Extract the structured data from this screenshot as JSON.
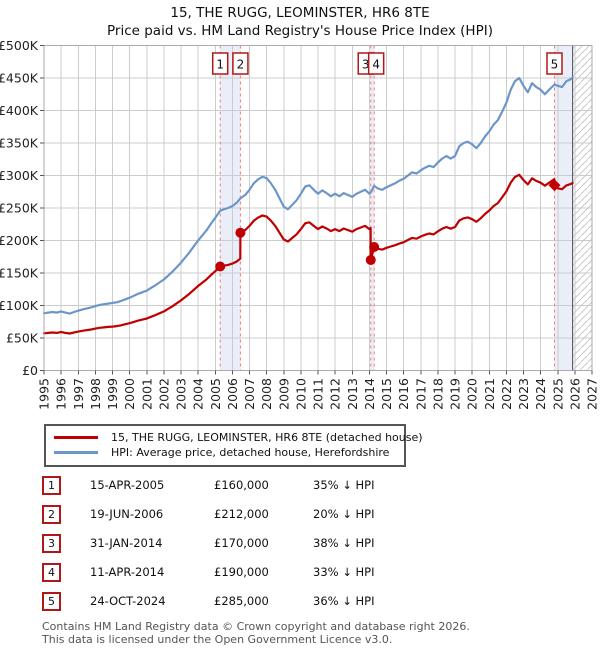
{
  "title": "15, THE RUGG, LEOMINSTER, HR6 8TE",
  "subtitle": "Price paid vs. HM Land Registry's House Price Index (HPI)",
  "legend": [
    {
      "label": "15, THE RUGG, LEOMINSTER, HR6 8TE (detached house)",
      "color": "#c00000"
    },
    {
      "label": "HPI: Average price, detached house, Herefordshire",
      "color": "#6d96c8"
    }
  ],
  "transactions": [
    {
      "num": "1",
      "date": "15-APR-2005",
      "price": "£160,000",
      "vs_hpi": "35% ↓ HPI"
    },
    {
      "num": "2",
      "date": "19-JUN-2006",
      "price": "£212,000",
      "vs_hpi": "20% ↓ HPI"
    },
    {
      "num": "3",
      "date": "31-JAN-2014",
      "price": "£170,000",
      "vs_hpi": "38% ↓ HPI"
    },
    {
      "num": "4",
      "date": "11-APR-2014",
      "price": "£190,000",
      "vs_hpi": "33% ↓ HPI"
    },
    {
      "num": "5",
      "date": "24-OCT-2024",
      "price": "£285,000",
      "vs_hpi": "36% ↓ HPI"
    }
  ],
  "footer": {
    "line1": "Contains HM Land Registry data © Crown copyright and database right 2026.",
    "line2": "This data is licensed under the Open Government Licence v3.0."
  },
  "chart_data": {
    "type": "line",
    "title": "Price paid vs. HM Land Registry's House Price Index (HPI)",
    "x_axis": {
      "min": 1995,
      "max": 2027,
      "tick_labels": [
        "1995",
        "1996",
        "1997",
        "1998",
        "1999",
        "2000",
        "2001",
        "2002",
        "2003",
        "2004",
        "2005",
        "2006",
        "2007",
        "2008",
        "2009",
        "2010",
        "2011",
        "2012",
        "2013",
        "2014",
        "2015",
        "2016",
        "2017",
        "2018",
        "2019",
        "2020",
        "2021",
        "2022",
        "2023",
        "2024",
        "2025",
        "2026",
        "2027"
      ]
    },
    "y_axis": {
      "min": 0,
      "max": 500,
      "units": "GBP thousands",
      "step": 50,
      "tick_labels": [
        "£0",
        "£50K",
        "£100K",
        "£150K",
        "£200K",
        "£250K",
        "£300K",
        "£350K",
        "£400K",
        "£450K",
        "£500K"
      ]
    },
    "grid": true,
    "legend_position": "below",
    "colors": {
      "price_paid": "#c00000",
      "hpi": "#6d96c8",
      "event_line": "#f37c7c",
      "band": "#e9eef9",
      "hatch": "#c9c9c9",
      "grid": "#cccccc",
      "frame": "#aaaaaa",
      "now_line": "#444455",
      "event_box_border": "#b01818"
    },
    "series": [
      {
        "name": "price_paid",
        "label": "15, THE RUGG, LEOMINSTER, HR6 8TE (detached house)",
        "points_year_gbpk": [
          [
            1995.0,
            57.2
          ],
          [
            1995.25,
            57.9
          ],
          [
            1995.5,
            58.5
          ],
          [
            1995.75,
            57.9
          ],
          [
            1996.0,
            59.2
          ],
          [
            1996.25,
            57.9
          ],
          [
            1996.5,
            56.9
          ],
          [
            1996.75,
            58.5
          ],
          [
            1997.0,
            59.8
          ],
          [
            1997.25,
            61.1
          ],
          [
            1997.5,
            62.1
          ],
          [
            1997.75,
            63.1
          ],
          [
            1998.0,
            64.4
          ],
          [
            1998.25,
            65.7
          ],
          [
            1998.5,
            66.3
          ],
          [
            1998.75,
            67
          ],
          [
            1999.0,
            67.6
          ],
          [
            1999.25,
            68.3
          ],
          [
            1999.5,
            69.6
          ],
          [
            1999.75,
            71.2
          ],
          [
            2000.0,
            72.8
          ],
          [
            2000.25,
            74.8
          ],
          [
            2000.5,
            76.7
          ],
          [
            2000.75,
            78.3
          ],
          [
            2001.0,
            80
          ],
          [
            2001.25,
            82.6
          ],
          [
            2001.5,
            85.2
          ],
          [
            2001.75,
            88.1
          ],
          [
            2002.0,
            91
          ],
          [
            2002.25,
            94.9
          ],
          [
            2002.5,
            98.8
          ],
          [
            2002.75,
            103.4
          ],
          [
            2003.0,
            107.9
          ],
          [
            2003.25,
            113.1
          ],
          [
            2003.5,
            118.3
          ],
          [
            2003.75,
            124.2
          ],
          [
            2004.0,
            130
          ],
          [
            2004.25,
            135.2
          ],
          [
            2004.5,
            140.4
          ],
          [
            2004.75,
            146.9
          ],
          [
            2005.0,
            152.8
          ],
          [
            2005.29,
            160
          ],
          [
            2005.5,
            161.2
          ],
          [
            2005.75,
            162.5
          ],
          [
            2006.0,
            164.5
          ],
          [
            2006.25,
            167.7
          ],
          [
            2006.46,
            172.2
          ],
          [
            2006.47,
            212
          ],
          [
            2006.75,
            216
          ],
          [
            2007.0,
            222.4
          ],
          [
            2007.25,
            230.4
          ],
          [
            2007.5,
            235.2
          ],
          [
            2007.75,
            238.4
          ],
          [
            2008.0,
            236.8
          ],
          [
            2008.25,
            230.4
          ],
          [
            2008.5,
            222.4
          ],
          [
            2008.75,
            212
          ],
          [
            2009.0,
            201.6
          ],
          [
            2009.25,
            198.4
          ],
          [
            2009.5,
            204
          ],
          [
            2009.75,
            209.6
          ],
          [
            2010.0,
            217.6
          ],
          [
            2010.25,
            226.4
          ],
          [
            2010.5,
            228
          ],
          [
            2010.75,
            222.4
          ],
          [
            2011.0,
            217.6
          ],
          [
            2011.25,
            221.6
          ],
          [
            2011.5,
            218.4
          ],
          [
            2011.75,
            214.4
          ],
          [
            2012.0,
            217.6
          ],
          [
            2012.25,
            214.4
          ],
          [
            2012.5,
            218.4
          ],
          [
            2012.75,
            216
          ],
          [
            2013.0,
            213.6
          ],
          [
            2013.25,
            217.6
          ],
          [
            2013.5,
            220
          ],
          [
            2013.75,
            222.4
          ],
          [
            2014.0,
            217.6
          ],
          [
            2014.07,
            219.2
          ],
          [
            2014.08,
            170
          ],
          [
            2014.28,
            190
          ],
          [
            2014.5,
            187.3
          ],
          [
            2014.75,
            186
          ],
          [
            2015.0,
            188.7
          ],
          [
            2015.25,
            190.7
          ],
          [
            2015.5,
            192.7
          ],
          [
            2015.75,
            195.3
          ],
          [
            2016.0,
            197.4
          ],
          [
            2016.25,
            200.7
          ],
          [
            2016.5,
            204
          ],
          [
            2016.75,
            202.7
          ],
          [
            2017.0,
            206.1
          ],
          [
            2017.25,
            208.7
          ],
          [
            2017.5,
            210.7
          ],
          [
            2017.75,
            209.4
          ],
          [
            2018.0,
            214.1
          ],
          [
            2018.25,
            218.1
          ],
          [
            2018.5,
            220.8
          ],
          [
            2018.75,
            218.1
          ],
          [
            2019.0,
            220.8
          ],
          [
            2019.25,
            230.8
          ],
          [
            2019.5,
            234.2
          ],
          [
            2019.75,
            235.5
          ],
          [
            2020.0,
            232.8
          ],
          [
            2020.25,
            228.8
          ],
          [
            2020.5,
            234.2
          ],
          [
            2020.75,
            240.8
          ],
          [
            2021.0,
            246.2
          ],
          [
            2021.25,
            252.9
          ],
          [
            2021.5,
            257.6
          ],
          [
            2021.75,
            266.3
          ],
          [
            2022.0,
            275.6
          ],
          [
            2022.25,
            289
          ],
          [
            2022.5,
            297.7
          ],
          [
            2022.75,
            301.1
          ],
          [
            2023.0,
            293
          ],
          [
            2023.25,
            286.3
          ],
          [
            2023.5,
            295.7
          ],
          [
            2023.75,
            291.7
          ],
          [
            2024.0,
            289
          ],
          [
            2024.25,
            284.3
          ],
          [
            2024.5,
            289
          ],
          [
            2024.8,
            294.4
          ],
          [
            2024.81,
            285
          ],
          [
            2025.0,
            280.3
          ],
          [
            2025.25,
            279
          ],
          [
            2025.5,
            284.8
          ],
          [
            2025.75,
            286.7
          ],
          [
            2025.87,
            288.6
          ]
        ]
      },
      {
        "name": "hpi",
        "label": "HPI: Average price, detached house, Herefordshire",
        "points_year_gbpk": [
          [
            1995.0,
            88
          ],
          [
            1995.25,
            89
          ],
          [
            1995.5,
            90
          ],
          [
            1995.75,
            89
          ],
          [
            1996.0,
            91
          ],
          [
            1996.25,
            89
          ],
          [
            1996.5,
            87.5
          ],
          [
            1996.75,
            90
          ],
          [
            1997.0,
            92
          ],
          [
            1997.25,
            94
          ],
          [
            1997.5,
            95.5
          ],
          [
            1997.75,
            97
          ],
          [
            1998.0,
            99
          ],
          [
            1998.25,
            101
          ],
          [
            1998.5,
            102
          ],
          [
            1998.75,
            103
          ],
          [
            1999.0,
            104
          ],
          [
            1999.25,
            105
          ],
          [
            1999.5,
            107
          ],
          [
            1999.75,
            109.5
          ],
          [
            2000.0,
            112
          ],
          [
            2000.25,
            115
          ],
          [
            2000.5,
            118
          ],
          [
            2000.75,
            120.5
          ],
          [
            2001.0,
            123
          ],
          [
            2001.25,
            127
          ],
          [
            2001.5,
            131
          ],
          [
            2001.75,
            135.5
          ],
          [
            2002.0,
            140
          ],
          [
            2002.25,
            146
          ],
          [
            2002.5,
            152
          ],
          [
            2002.75,
            159
          ],
          [
            2003.0,
            166
          ],
          [
            2003.25,
            174
          ],
          [
            2003.5,
            182
          ],
          [
            2003.75,
            191
          ],
          [
            2004.0,
            200
          ],
          [
            2004.25,
            208
          ],
          [
            2004.5,
            216
          ],
          [
            2004.75,
            226
          ],
          [
            2005.0,
            235
          ],
          [
            2005.29,
            246
          ],
          [
            2005.5,
            248
          ],
          [
            2005.75,
            250
          ],
          [
            2006.0,
            253
          ],
          [
            2006.25,
            258
          ],
          [
            2006.47,
            265
          ],
          [
            2006.75,
            270
          ],
          [
            2007.0,
            278
          ],
          [
            2007.25,
            288
          ],
          [
            2007.5,
            294
          ],
          [
            2007.75,
            298
          ],
          [
            2008.0,
            296
          ],
          [
            2008.25,
            288
          ],
          [
            2008.5,
            278
          ],
          [
            2008.75,
            265
          ],
          [
            2009.0,
            252
          ],
          [
            2009.25,
            248
          ],
          [
            2009.5,
            255
          ],
          [
            2009.75,
            262
          ],
          [
            2010.0,
            272
          ],
          [
            2010.25,
            283
          ],
          [
            2010.5,
            285
          ],
          [
            2010.75,
            278
          ],
          [
            2011.0,
            272
          ],
          [
            2011.25,
            277
          ],
          [
            2011.5,
            273
          ],
          [
            2011.75,
            268
          ],
          [
            2012.0,
            272
          ],
          [
            2012.25,
            268
          ],
          [
            2012.5,
            273
          ],
          [
            2012.75,
            270
          ],
          [
            2013.0,
            267
          ],
          [
            2013.25,
            272
          ],
          [
            2013.5,
            275
          ],
          [
            2013.75,
            278
          ],
          [
            2014.0,
            272
          ],
          [
            2014.08,
            274
          ],
          [
            2014.28,
            284
          ],
          [
            2014.5,
            280
          ],
          [
            2014.75,
            278
          ],
          [
            2015.0,
            282
          ],
          [
            2015.25,
            285
          ],
          [
            2015.5,
            288
          ],
          [
            2015.75,
            292
          ],
          [
            2016.0,
            295
          ],
          [
            2016.25,
            300
          ],
          [
            2016.5,
            305
          ],
          [
            2016.75,
            303
          ],
          [
            2017.0,
            308
          ],
          [
            2017.25,
            312
          ],
          [
            2017.5,
            315
          ],
          [
            2017.75,
            313
          ],
          [
            2018.0,
            320
          ],
          [
            2018.25,
            326
          ],
          [
            2018.5,
            330
          ],
          [
            2018.75,
            326
          ],
          [
            2019.0,
            330
          ],
          [
            2019.25,
            345
          ],
          [
            2019.5,
            350
          ],
          [
            2019.75,
            352
          ],
          [
            2020.0,
            348
          ],
          [
            2020.25,
            342
          ],
          [
            2020.5,
            350
          ],
          [
            2020.75,
            360
          ],
          [
            2021.0,
            368
          ],
          [
            2021.25,
            378
          ],
          [
            2021.5,
            385
          ],
          [
            2021.75,
            398
          ],
          [
            2022.0,
            412
          ],
          [
            2022.25,
            432
          ],
          [
            2022.5,
            445
          ],
          [
            2022.75,
            450
          ],
          [
            2023.0,
            438
          ],
          [
            2023.25,
            428
          ],
          [
            2023.5,
            442
          ],
          [
            2023.75,
            436
          ],
          [
            2024.0,
            432
          ],
          [
            2024.25,
            425
          ],
          [
            2024.5,
            432
          ],
          [
            2024.81,
            440
          ],
          [
            2025.0,
            438
          ],
          [
            2025.25,
            436
          ],
          [
            2025.5,
            445
          ],
          [
            2025.75,
            448
          ],
          [
            2025.87,
            451
          ]
        ]
      }
    ],
    "sales": [
      {
        "num": "1",
        "x": 2005.29,
        "price_gbpk": 160,
        "marker": "circle",
        "box_dx": 0
      },
      {
        "num": "2",
        "x": 2006.47,
        "price_gbpk": 212,
        "marker": "circle",
        "box_dx": 0
      },
      {
        "num": "3",
        "x": 2014.08,
        "price_gbpk": 170,
        "marker": "circle",
        "box_dx": -5
      },
      {
        "num": "4",
        "x": 2014.28,
        "price_gbpk": 190,
        "marker": "circle",
        "box_dx": 2
      },
      {
        "num": "5",
        "x": 2024.81,
        "price_gbpk": 285,
        "marker": "diamond",
        "box_dx": 0
      }
    ],
    "ownership_bands": [
      {
        "x1": 2005.29,
        "x2": 2006.47
      },
      {
        "x1": 2014.08,
        "x2": 2014.28
      },
      {
        "x1": 2024.81,
        "x2": 2025.87
      }
    ],
    "now_x": 2025.87,
    "hatch_to_x": 2027
  }
}
